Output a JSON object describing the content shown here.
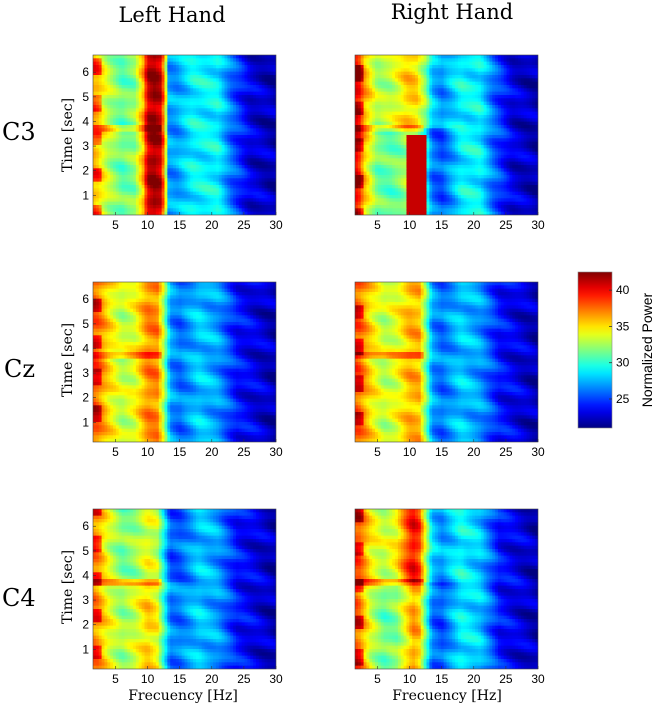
{
  "figure": {
    "col_titles": [
      "Left Hand",
      "Right Hand"
    ],
    "row_labels": [
      "C3",
      "Cz",
      "C4"
    ]
  },
  "chart_data": {
    "type": "heatmap",
    "xlabel": "Frecuency [Hz]",
    "ylabel": "Time [sec]",
    "xlim": [
      1.5,
      30
    ],
    "ylim": [
      0.2,
      6.7
    ],
    "xticks": [
      5,
      10,
      15,
      20,
      25,
      30
    ],
    "yticks": [
      1,
      2,
      3,
      4,
      5,
      6
    ],
    "colorbar": {
      "label": "Normalized Power",
      "range": [
        21,
        42.5
      ],
      "ticks": [
        25,
        30,
        35,
        40
      ]
    },
    "panels": [
      {
        "row": "C3",
        "col": "Left Hand",
        "base": [
          [
            2,
            36
          ],
          [
            4,
            33
          ],
          [
            6,
            31
          ],
          [
            8,
            32
          ],
          [
            9.3,
            36
          ],
          [
            10,
            41
          ],
          [
            11,
            42
          ],
          [
            12,
            41
          ],
          [
            12.7,
            36
          ],
          [
            13.3,
            27
          ],
          [
            14.5,
            27
          ],
          [
            17,
            29
          ],
          [
            21,
            29
          ],
          [
            23,
            26
          ],
          [
            26,
            23
          ],
          [
            30,
            22
          ]
        ],
        "cue_time": 3.7,
        "pre": 0,
        "post": 0
      },
      {
        "row": "C3",
        "col": "Right Hand",
        "base": [
          [
            2,
            40
          ],
          [
            3,
            36
          ],
          [
            5,
            32
          ],
          [
            7,
            32
          ],
          [
            8.5,
            33
          ],
          [
            9.5,
            34
          ],
          [
            11,
            34
          ],
          [
            12.5,
            31
          ],
          [
            13.5,
            27
          ],
          [
            15,
            26
          ],
          [
            18,
            29
          ],
          [
            21,
            29
          ],
          [
            23,
            26
          ],
          [
            26,
            23
          ],
          [
            30,
            22
          ]
        ],
        "cue_time": 3.7,
        "pre": -1.5,
        "post": 1.5,
        "blob": {
          "x": [
            9.5,
            12.5
          ],
          "t": [
            0.2,
            3.5
          ],
          "value": 41
        }
      },
      {
        "row": "Cz",
        "col": "Left Hand",
        "base": [
          [
            2,
            38
          ],
          [
            4,
            35
          ],
          [
            6,
            33
          ],
          [
            8,
            34
          ],
          [
            10,
            37
          ],
          [
            11.5,
            37
          ],
          [
            12.5,
            33
          ],
          [
            13.5,
            27
          ],
          [
            15,
            26
          ],
          [
            18,
            28
          ],
          [
            21,
            27
          ],
          [
            24,
            24
          ],
          [
            27,
            23
          ],
          [
            30,
            22
          ]
        ],
        "cue_time": 3.7,
        "pre": 0,
        "post": 0
      },
      {
        "row": "Cz",
        "col": "Right Hand",
        "base": [
          [
            2,
            38
          ],
          [
            4,
            35
          ],
          [
            6,
            33
          ],
          [
            8,
            34
          ],
          [
            10,
            36
          ],
          [
            11.5,
            36
          ],
          [
            12.5,
            32
          ],
          [
            13.5,
            27
          ],
          [
            15,
            26
          ],
          [
            18,
            28
          ],
          [
            21,
            27
          ],
          [
            24,
            24
          ],
          [
            27,
            23
          ],
          [
            30,
            22
          ]
        ],
        "cue_time": 3.7,
        "pre": 0,
        "post": 0
      },
      {
        "row": "C4",
        "col": "Left Hand",
        "base": [
          [
            2,
            37
          ],
          [
            4,
            34
          ],
          [
            6,
            32
          ],
          [
            8,
            33
          ],
          [
            10,
            35
          ],
          [
            11.5,
            34
          ],
          [
            12.5,
            30
          ],
          [
            13.5,
            26
          ],
          [
            15,
            26
          ],
          [
            18,
            28
          ],
          [
            21,
            27
          ],
          [
            24,
            24
          ],
          [
            27,
            23
          ],
          [
            30,
            22
          ]
        ],
        "cue_time": 3.7,
        "pre": 0.5,
        "post": -1
      },
      {
        "row": "C4",
        "col": "Right Hand",
        "base": [
          [
            2,
            38
          ],
          [
            4,
            34
          ],
          [
            6,
            32
          ],
          [
            8,
            33
          ],
          [
            9.5,
            36
          ],
          [
            10.5,
            38
          ],
          [
            11.5,
            37
          ],
          [
            12.5,
            32
          ],
          [
            13.5,
            27
          ],
          [
            15,
            26
          ],
          [
            18,
            29
          ],
          [
            21,
            28
          ],
          [
            24,
            24
          ],
          [
            27,
            23
          ],
          [
            30,
            22
          ]
        ],
        "cue_time": 3.7,
        "pre": -1.5,
        "post": 2
      }
    ]
  }
}
